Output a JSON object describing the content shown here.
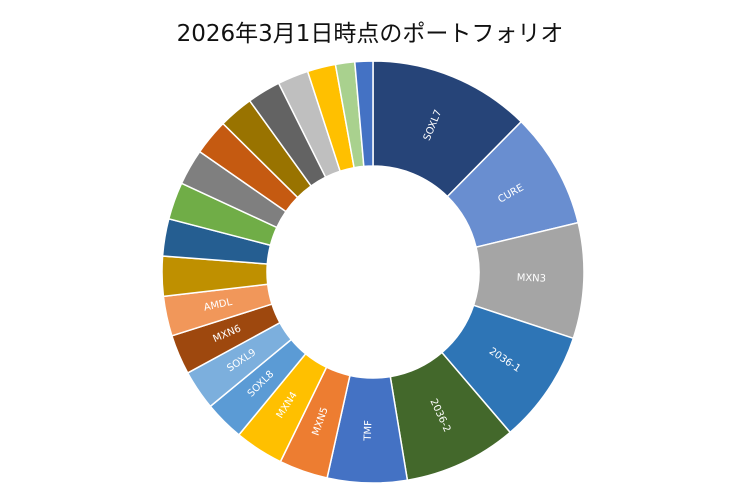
{
  "chart_data": {
    "type": "pie",
    "style": "donut",
    "title": "2026年3月1日時点のポートフォリオ",
    "legend": "none",
    "slices": [
      {
        "label": "SOXL7",
        "value": 12.6,
        "color": "#264478",
        "show_label": true,
        "label_color": "#ffffff"
      },
      {
        "label": "CURE",
        "value": 9.0,
        "color": "#698ED0",
        "show_label": true,
        "label_color": "#ffffff"
      },
      {
        "label": "MXN3",
        "value": 9.0,
        "color": "#A5A5A5",
        "show_label": true,
        "label_color": "#ffffff"
      },
      {
        "label": "2036-1",
        "value": 8.8,
        "color": "#2E75B6",
        "show_label": true,
        "label_color": "#ffffff"
      },
      {
        "label": "2036-2",
        "value": 8.8,
        "color": "#43682B",
        "show_label": true,
        "label_color": "#ffffff"
      },
      {
        "label": "TMF",
        "value": 6.2,
        "color": "#4472C4",
        "show_label": true,
        "label_color": "#ffffff"
      },
      {
        "label": "MXN5",
        "value": 3.8,
        "color": "#ED7D31",
        "show_label": true,
        "label_color": "#ffffff"
      },
      {
        "label": "MXN4",
        "value": 3.8,
        "color": "#FFC000",
        "show_label": true,
        "label_color": "#ffffff"
      },
      {
        "label": "SOXL8",
        "value": 3.1,
        "color": "#5B9BD5",
        "show_label": true,
        "label_color": "#ffffff"
      },
      {
        "label": "SOXL9",
        "value": 3.1,
        "color": "#7CAFDD",
        "show_label": true,
        "label_color": "#ffffff"
      },
      {
        "label": "MXN6",
        "value": 3.1,
        "color": "#9E480E",
        "show_label": true,
        "label_color": "#ffffff"
      },
      {
        "label": "AMDL",
        "value": 3.1,
        "color": "#F1975A",
        "show_label": true,
        "label_color": "#ffffff"
      },
      {
        "label": "",
        "value": 3.1,
        "color": "#BF9000",
        "show_label": false
      },
      {
        "label": "",
        "value": 2.9,
        "color": "#255E91",
        "show_label": false
      },
      {
        "label": "",
        "value": 2.9,
        "color": "#70AD47",
        "show_label": false
      },
      {
        "label": "",
        "value": 2.8,
        "color": "#7F7F7F",
        "show_label": false
      },
      {
        "label": "",
        "value": 2.8,
        "color": "#C55A11",
        "show_label": false
      },
      {
        "label": "",
        "value": 2.7,
        "color": "#997300",
        "show_label": false
      },
      {
        "label": "",
        "value": 2.6,
        "color": "#636363",
        "show_label": false
      },
      {
        "label": "",
        "value": 2.4,
        "color": "#BFBFBF",
        "show_label": false
      },
      {
        "label": "",
        "value": 2.2,
        "color": "#FFC000",
        "show_label": false
      },
      {
        "label": "",
        "value": 1.5,
        "color": "#A9D18E",
        "show_label": false
      },
      {
        "label": "",
        "value": 1.4,
        "color": "#4472C4",
        "show_label": false
      }
    ]
  }
}
